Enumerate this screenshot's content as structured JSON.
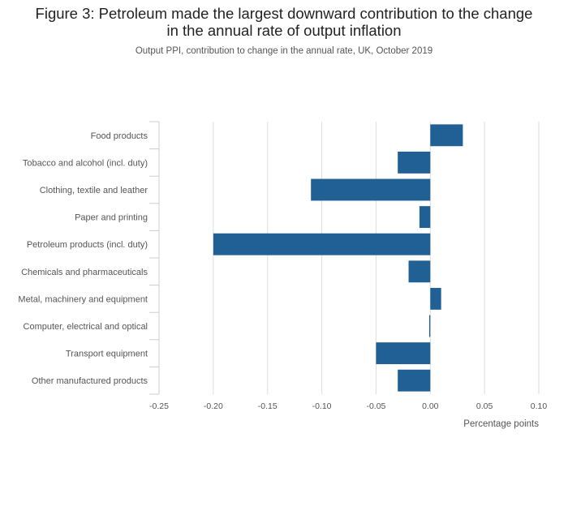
{
  "chart_data": {
    "type": "bar",
    "orientation": "horizontal",
    "title_lines": [
      "Figure 3: Petroleum made the largest downward contribution to the change",
      "in the annual rate of output inflation"
    ],
    "subtitle": "Output PPI, contribution to change in the annual rate, UK, October 2019",
    "xlabel": "Percentage points",
    "ylabel": "",
    "xlim": [
      -0.25,
      0.1
    ],
    "xticks": [
      -0.25,
      -0.2,
      -0.15,
      -0.1,
      -0.05,
      0.0,
      0.05,
      0.1
    ],
    "xtick_labels": [
      "-0.25",
      "-0.20",
      "-0.15",
      "-0.10",
      "-0.05",
      "0.00",
      "0.05",
      "0.10"
    ],
    "categories": [
      "Food products",
      "Tobacco and alcohol (incl. duty)",
      "Clothing, textile and leather",
      "Paper and printing",
      "Petroleum products (incl. duty)",
      "Chemicals and pharmaceuticals",
      "Metal, machinery and equipment",
      "Computer, electrical and optical",
      "Transport equipment",
      "Other manufactured products"
    ],
    "values": [
      0.03,
      -0.03,
      -0.11,
      -0.01,
      -0.2,
      -0.02,
      0.01,
      -0.001,
      -0.05,
      -0.03
    ],
    "bar_color": "#206095",
    "grid_color": "#dddddd",
    "grid": true,
    "legend": "none"
  }
}
